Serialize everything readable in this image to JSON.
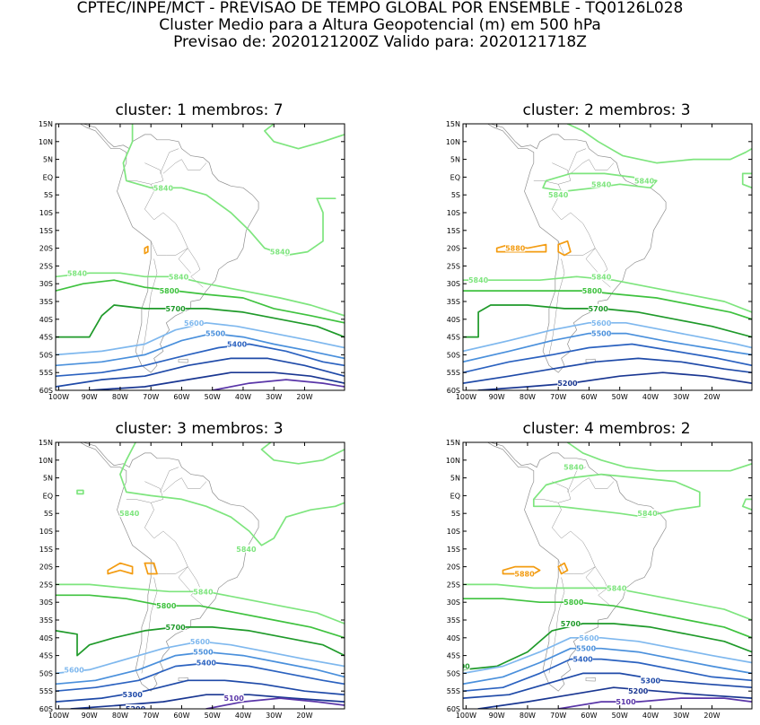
{
  "header": {
    "line1": "CPTEC/INPE/MCT - PREVISAO DE TEMPO GLOBAL POR ENSEMBLE - TQ0126L028",
    "line2": "Cluster Medio para a Altura Geopotencial (m) em 500 hPa",
    "line3": "Previsao de: 2020121200Z   Valido para: 2020121718Z"
  },
  "axes": {
    "lat_labels": [
      "15N",
      "10N",
      "5N",
      "EQ",
      "5S",
      "10S",
      "15S",
      "20S",
      "25S",
      "30S",
      "35S",
      "40S",
      "45S",
      "50S",
      "55S",
      "60S"
    ],
    "lon_labels": [
      "100W",
      "90W",
      "80W",
      "70W",
      "60W",
      "50W",
      "40W",
      "30W",
      "20W"
    ]
  },
  "colors": {
    "c5880": "#f39c12",
    "c5840": "#7ee57e",
    "c5800": "#3fc23f",
    "c5700": "#1f9a2a",
    "c5600": "#7fb8ee",
    "c5500": "#4a90dc",
    "c5400": "#2b62c0",
    "c5300": "#1f4aa8",
    "c5200": "#1a3792",
    "c5100": "#5a36a8",
    "coast": "#909090"
  },
  "panels": [
    {
      "title": "cluster: 1   membros: 7",
      "labels": [
        {
          "text": "5840",
          "lon": -66,
          "lat": -3,
          "c": "c5840"
        },
        {
          "text": "5840",
          "lon": -28,
          "lat": -21,
          "c": "c5840"
        },
        {
          "text": "5840",
          "lon": -94,
          "lat": -27,
          "c": "c5840"
        },
        {
          "text": "5840",
          "lon": -61,
          "lat": -28,
          "c": "c5840"
        },
        {
          "text": "5800",
          "lon": -64,
          "lat": -32,
          "c": "c5800"
        },
        {
          "text": "5700",
          "lon": -62,
          "lat": -37,
          "c": "c5700"
        },
        {
          "text": "5600",
          "lon": -56,
          "lat": -41,
          "c": "c5600"
        },
        {
          "text": "5500",
          "lon": -49,
          "lat": -44,
          "c": "c5500"
        },
        {
          "text": "5400",
          "lon": -42,
          "lat": -47,
          "c": "c5400"
        }
      ]
    },
    {
      "title": "cluster: 2   membros: 3",
      "labels": [
        {
          "text": "5840",
          "lon": -42,
          "lat": -1,
          "c": "c5840"
        },
        {
          "text": "5840",
          "lon": -56,
          "lat": -2,
          "c": "c5840"
        },
        {
          "text": "5840",
          "lon": -70,
          "lat": -5,
          "c": "c5840"
        },
        {
          "text": "5880",
          "lon": -84,
          "lat": -20,
          "c": "c5880"
        },
        {
          "text": "5840",
          "lon": -96,
          "lat": -29,
          "c": "c5840"
        },
        {
          "text": "5840",
          "lon": -56,
          "lat": -28,
          "c": "c5840"
        },
        {
          "text": "5800",
          "lon": -59,
          "lat": -32,
          "c": "c5800"
        },
        {
          "text": "5700",
          "lon": -57,
          "lat": -37,
          "c": "c5700"
        },
        {
          "text": "5600",
          "lon": -56,
          "lat": -41,
          "c": "c5600"
        },
        {
          "text": "5500",
          "lon": -56,
          "lat": -44,
          "c": "c5500"
        },
        {
          "text": "5200",
          "lon": -67,
          "lat": -58,
          "c": "c5200"
        }
      ]
    },
    {
      "title": "cluster: 3   membros: 3",
      "labels": [
        {
          "text": "5840",
          "lon": -77,
          "lat": -5,
          "c": "c5840"
        },
        {
          "text": "5840",
          "lon": -39,
          "lat": -15,
          "c": "c5840"
        },
        {
          "text": "5840",
          "lon": -53,
          "lat": -27,
          "c": "c5840"
        },
        {
          "text": "5800",
          "lon": -65,
          "lat": -31,
          "c": "c5800"
        },
        {
          "text": "5700",
          "lon": -62,
          "lat": -37,
          "c": "c5700"
        },
        {
          "text": "5600",
          "lon": -54,
          "lat": -41,
          "c": "c5600"
        },
        {
          "text": "5500",
          "lon": -53,
          "lat": -44,
          "c": "c5500"
        },
        {
          "text": "5400",
          "lon": -52,
          "lat": -47,
          "c": "c5400"
        },
        {
          "text": "5600",
          "lon": -95,
          "lat": -49,
          "c": "c5600"
        },
        {
          "text": "5300",
          "lon": -76,
          "lat": -56,
          "c": "c5300"
        },
        {
          "text": "5200",
          "lon": -75,
          "lat": -60,
          "c": "c5200"
        },
        {
          "text": "5100",
          "lon": -43,
          "lat": -57,
          "c": "c5100"
        }
      ]
    },
    {
      "title": "cluster: 4   membros: 2",
      "labels": [
        {
          "text": "5840",
          "lon": -65,
          "lat": 8,
          "c": "c5840"
        },
        {
          "text": "5840",
          "lon": -41,
          "lat": -5,
          "c": "c5840"
        },
        {
          "text": "5880",
          "lon": -81,
          "lat": -22,
          "c": "c5880"
        },
        {
          "text": "5840",
          "lon": -51,
          "lat": -26,
          "c": "c5840"
        },
        {
          "text": "5800",
          "lon": -65,
          "lat": -30,
          "c": "c5800"
        },
        {
          "text": "5700",
          "lon": -66,
          "lat": -36,
          "c": "c5700"
        },
        {
          "text": "5600",
          "lon": -60,
          "lat": -40,
          "c": "c5600"
        },
        {
          "text": "5500",
          "lon": -61,
          "lat": -43,
          "c": "c5500"
        },
        {
          "text": "5400",
          "lon": -62,
          "lat": -46,
          "c": "c5400"
        },
        {
          "text": "5700",
          "lon": -102,
          "lat": -48,
          "c": "c5700"
        },
        {
          "text": "5300",
          "lon": -40,
          "lat": -52,
          "c": "c5300"
        },
        {
          "text": "5200",
          "lon": -44,
          "lat": -55,
          "c": "c5200"
        },
        {
          "text": "5100",
          "lon": -48,
          "lat": -58,
          "c": "c5100"
        }
      ]
    }
  ]
}
